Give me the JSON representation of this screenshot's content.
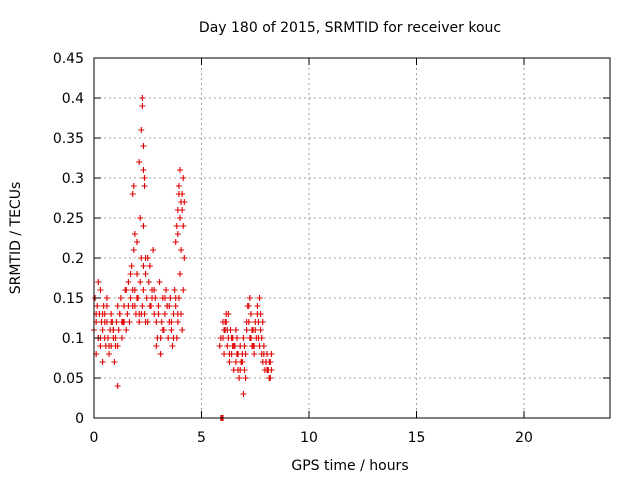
{
  "chart_data": {
    "type": "scatter",
    "title": "Day 180 of 2015, SRMTID for receiver kouc",
    "xlabel": "GPS time / hours",
    "ylabel": "SRMTID / TECUs",
    "xlim": [
      0,
      24
    ],
    "ylim": [
      0,
      0.45
    ],
    "xticks": [
      0,
      5,
      10,
      15,
      20
    ],
    "xtick_labels": [
      "0",
      "5",
      "10",
      "15",
      "20"
    ],
    "yticks": [
      0,
      0.05,
      0.1,
      0.15,
      0.2,
      0.25,
      0.3,
      0.35,
      0.4,
      0.45
    ],
    "ytick_labels": [
      "0",
      "0.05",
      "0.1",
      "0.15",
      "0.2",
      "0.25",
      "0.3",
      "0.35",
      "0.4",
      "0.45"
    ],
    "grid": true,
    "marker": "plus",
    "series": [
      {
        "name": "SRMTID",
        "color": "#e00000",
        "x": [
          0.0,
          0.05,
          0.1,
          0.1,
          0.15,
          0.2,
          0.2,
          0.25,
          0.3,
          0.3,
          0.35,
          0.4,
          0.4,
          0.45,
          0.5,
          0.5,
          0.55,
          0.6,
          0.6,
          0.65,
          0.7,
          0.75,
          0.8,
          0.8,
          0.85,
          0.9,
          0.95,
          1.0,
          1.05,
          1.1,
          1.1,
          1.15,
          1.2,
          1.25,
          1.3,
          1.35,
          1.4,
          1.45,
          1.5,
          1.55,
          1.6,
          1.65,
          1.7,
          1.75,
          1.8,
          1.85,
          1.9,
          1.95,
          2.0,
          2.0,
          2.05,
          2.1,
          2.15,
          2.2,
          2.25,
          2.3,
          2.35,
          2.4,
          2.45,
          2.5,
          2.55,
          2.6,
          2.65,
          2.7,
          2.75,
          2.8,
          2.85,
          2.9,
          2.95,
          3.0,
          3.05,
          3.1,
          3.15,
          3.2,
          3.25,
          3.3,
          3.35,
          3.4,
          3.45,
          3.5,
          3.55,
          3.6,
          3.65,
          3.7,
          3.75,
          3.8,
          3.85,
          3.9,
          3.95,
          4.0,
          4.05,
          4.1,
          4.15,
          4.2,
          0.1,
          0.3,
          0.5,
          0.7,
          0.9,
          1.0,
          1.2,
          1.4,
          1.6,
          1.8,
          2.0,
          2.2,
          2.4,
          2.6,
          2.8,
          3.0,
          3.2,
          3.4,
          3.6,
          3.8,
          0.2,
          0.6,
          0.9,
          1.1,
          1.3,
          1.7,
          2.1,
          2.5,
          2.9,
          3.3,
          3.7,
          0.4,
          0.8,
          1.5,
          1.9,
          2.3,
          2.7,
          3.1,
          3.5,
          3.9,
          1.8,
          1.85,
          2.1,
          2.2,
          2.25,
          2.25,
          2.3,
          2.3,
          2.35,
          2.35,
          2.3,
          2.4,
          1.9,
          2.0,
          2.15,
          3.8,
          3.85,
          3.9,
          3.95,
          4.0,
          4.05,
          4.1,
          4.15,
          4.2,
          3.9,
          4.0,
          4.1,
          4.05,
          3.95,
          4.15,
          5.9,
          5.95,
          6.0,
          5.85,
          5.9,
          6.0,
          6.05,
          6.1,
          6.15,
          6.2,
          6.25,
          6.3,
          6.35,
          6.4,
          6.45,
          6.5,
          6.55,
          6.6,
          6.65,
          6.7,
          6.75,
          6.8,
          6.85,
          6.9,
          6.95,
          7.0,
          7.05,
          7.1,
          7.15,
          7.2,
          7.25,
          7.3,
          7.35,
          7.4,
          7.45,
          7.5,
          7.55,
          7.6,
          7.65,
          7.7,
          7.75,
          7.8,
          7.85,
          7.9,
          7.95,
          8.0,
          8.05,
          8.1,
          8.15,
          8.2,
          8.25,
          6.0,
          6.1,
          6.2,
          6.3,
          6.4,
          6.5,
          6.6,
          6.7,
          6.8,
          6.9,
          7.0,
          7.1,
          7.2,
          7.3,
          7.4,
          7.5,
          7.6,
          7.7,
          7.8,
          7.9,
          8.0,
          8.1,
          8.2,
          6.05,
          6.25,
          6.45,
          6.65,
          6.85,
          7.05,
          7.25,
          7.45,
          7.65,
          7.85,
          8.05,
          8.25,
          6.15,
          6.55,
          6.95,
          7.35,
          7.75,
          8.15
        ],
        "y": [
          0.11,
          0.15,
          0.12,
          0.08,
          0.14,
          0.1,
          0.17,
          0.13,
          0.09,
          0.16,
          0.12,
          0.07,
          0.11,
          0.14,
          0.1,
          0.13,
          0.09,
          0.12,
          0.15,
          0.1,
          0.08,
          0.11,
          0.13,
          0.09,
          0.12,
          0.1,
          0.07,
          0.09,
          0.12,
          0.04,
          0.14,
          0.11,
          0.13,
          0.15,
          0.1,
          0.12,
          0.14,
          0.16,
          0.11,
          0.13,
          0.17,
          0.12,
          0.15,
          0.19,
          0.14,
          0.21,
          0.16,
          0.13,
          0.18,
          0.22,
          0.15,
          0.12,
          0.17,
          0.2,
          0.14,
          0.16,
          0.13,
          0.18,
          0.15,
          0.12,
          0.17,
          0.19,
          0.14,
          0.16,
          0.21,
          0.13,
          0.15,
          0.12,
          0.1,
          0.14,
          0.17,
          0.08,
          0.12,
          0.15,
          0.11,
          0.13,
          0.16,
          0.14,
          0.1,
          0.12,
          0.15,
          0.11,
          0.09,
          0.13,
          0.16,
          0.14,
          0.1,
          0.12,
          0.15,
          0.18,
          0.13,
          0.11,
          0.16,
          0.2,
          0.13,
          0.1,
          0.12,
          0.09,
          0.11,
          0.1,
          0.13,
          0.12,
          0.14,
          0.16,
          0.15,
          0.13,
          0.12,
          0.14,
          0.16,
          0.13,
          0.11,
          0.14,
          0.12,
          0.15,
          0.1,
          0.14,
          0.11,
          0.09,
          0.12,
          0.18,
          0.13,
          0.2,
          0.09,
          0.15,
          0.1,
          0.13,
          0.12,
          0.16,
          0.14,
          0.19,
          0.15,
          0.1,
          0.14,
          0.13,
          0.28,
          0.29,
          0.32,
          0.36,
          0.39,
          0.4,
          0.34,
          0.31,
          0.3,
          0.29,
          0.24,
          0.2,
          0.23,
          0.22,
          0.25,
          0.22,
          0.24,
          0.26,
          0.29,
          0.31,
          0.27,
          0.28,
          0.3,
          0.27,
          0.23,
          0.25,
          0.26,
          0.21,
          0.28,
          0.24,
          0.0,
          0.0,
          0.0,
          0.09,
          0.1,
          0.12,
          0.08,
          0.11,
          0.13,
          0.09,
          0.1,
          0.07,
          0.11,
          0.08,
          0.1,
          0.06,
          0.09,
          0.07,
          0.08,
          0.06,
          0.05,
          0.09,
          0.07,
          0.08,
          0.03,
          0.06,
          0.05,
          0.11,
          0.14,
          0.12,
          0.1,
          0.13,
          0.09,
          0.11,
          0.08,
          0.12,
          0.1,
          0.14,
          0.12,
          0.09,
          0.11,
          0.08,
          0.07,
          0.09,
          0.06,
          0.07,
          0.08,
          0.06,
          0.05,
          0.07,
          0.06,
          0.1,
          0.12,
          0.11,
          0.08,
          0.1,
          0.09,
          0.11,
          0.08,
          0.06,
          0.07,
          0.09,
          0.12,
          0.14,
          0.1,
          0.09,
          0.11,
          0.13,
          0.15,
          0.1,
          0.08,
          0.07,
          0.06,
          0.05,
          0.11,
          0.13,
          0.09,
          0.1,
          0.07,
          0.08,
          0.15,
          0.09,
          0.1,
          0.12,
          0.06,
          0.08,
          0.12,
          0.09,
          0.1,
          0.11,
          0.13,
          0.07
        ]
      }
    ]
  }
}
